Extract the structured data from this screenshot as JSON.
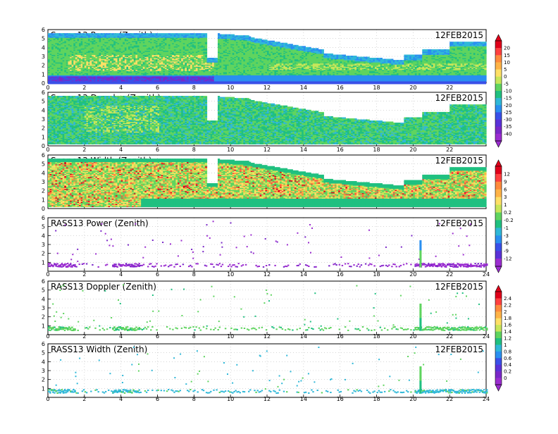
{
  "chart_data": [
    {
      "type": "heatmap",
      "title": "Spano13 Power (Zenith)",
      "date": "12FEB2015",
      "xlim": [
        0,
        24
      ],
      "ylim": [
        0,
        6
      ],
      "xticks": [
        "0",
        "2",
        "4",
        "6",
        "8",
        "10",
        "12",
        "14",
        "16",
        "18",
        "20",
        "22"
      ],
      "yticks": [
        "0",
        "1",
        "2",
        "3",
        "4",
        "5",
        "6"
      ],
      "colorbar": "power"
    },
    {
      "type": "heatmap",
      "title": "Spano13 Doppler (Zenith)",
      "date": "12FEB2015",
      "xlim": [
        0,
        24
      ],
      "ylim": [
        0,
        6
      ],
      "xticks": [
        "0",
        "2",
        "4",
        "6",
        "8",
        "10",
        "12",
        "14",
        "16",
        "18",
        "20",
        "22"
      ],
      "yticks": [
        "0",
        "1",
        "2",
        "3",
        "4",
        "5",
        "6"
      ],
      "colorbar": null
    },
    {
      "type": "heatmap",
      "title": "Spano13 Width (Zenith)",
      "date": "12FEB2015",
      "xlim": [
        0,
        24
      ],
      "ylim": [
        0,
        6
      ],
      "xticks": [],
      "yticks": [
        "0",
        "1",
        "2",
        "3",
        "4",
        "5",
        "6"
      ],
      "colorbar": "width"
    },
    {
      "type": "scatter",
      "title": "RASS13 Power (Zenith)",
      "date": "12FEB2015",
      "xlim": [
        0,
        24
      ],
      "ylim": [
        0,
        6
      ],
      "xticks": [
        "0",
        "2",
        "4",
        "6",
        "8",
        "10",
        "12",
        "14",
        "16",
        "18",
        "20",
        "22",
        "24"
      ],
      "yticks": [
        "1",
        "2",
        "3",
        "4",
        "5",
        "6"
      ],
      "colorbar": null
    },
    {
      "type": "scatter",
      "title": "RASS13 Doppler (Zenith)",
      "date": "12FEB2015",
      "xlim": [
        0,
        24
      ],
      "ylim": [
        0,
        6
      ],
      "xticks": [
        "0",
        "2",
        "4",
        "6",
        "8",
        "10",
        "12",
        "14",
        "16",
        "18",
        "20",
        "22",
        "24"
      ],
      "yticks": [
        "1",
        "2",
        "3",
        "4",
        "5",
        "6"
      ],
      "colorbar": "rass"
    },
    {
      "type": "scatter",
      "title": "RASS13 Width (Zenith)",
      "date": "12FEB2015",
      "xlim": [
        0,
        24
      ],
      "ylim": [
        0,
        6
      ],
      "xticks": [
        "0",
        "2",
        "4",
        "6",
        "8",
        "10",
        "12",
        "14",
        "16",
        "18",
        "20",
        "22",
        "24"
      ],
      "yticks": [
        "1",
        "2",
        "3",
        "4",
        "5",
        "6"
      ],
      "colorbar": null
    }
  ],
  "colorbars": {
    "power": {
      "labels": [
        "20",
        "15",
        "10",
        "5",
        "0",
        "-5",
        "-10",
        "-15",
        "-20",
        "-25",
        "-30",
        "-35",
        "-40"
      ],
      "colors": [
        "#e0001a",
        "#ff4040",
        "#ff8a3d",
        "#ffb347",
        "#ffe066",
        "#c8e65a",
        "#5fd45f",
        "#20c080",
        "#30b8d8",
        "#2a8ff0",
        "#3a50e8",
        "#5a32d8",
        "#7a28c8",
        "#9b2dd0"
      ]
    },
    "width": {
      "labels": [
        "12",
        "9",
        "6",
        "3",
        "1",
        "0.2",
        "-0.2",
        "-1",
        "-3",
        "-6",
        "-9",
        "-12"
      ],
      "colors": [
        "#e0001a",
        "#ff4040",
        "#ff8a3d",
        "#ffb347",
        "#ffe066",
        "#c8e65a",
        "#5fd45f",
        "#20c080",
        "#30b8d8",
        "#2a8ff0",
        "#3a50e8",
        "#5a32d8",
        "#9b2dd0"
      ]
    },
    "rass": {
      "labels": [
        "2.4",
        "2.2",
        "2",
        "1.8",
        "1.6",
        "1.4",
        "1.2",
        "1",
        "0.8",
        "0.6",
        "0.4",
        "0.2",
        "0"
      ],
      "colors": [
        "#e0001a",
        "#ff4040",
        "#ff8a3d",
        "#ffb347",
        "#ffe066",
        "#c8e65a",
        "#5fd45f",
        "#20c080",
        "#30b8d8",
        "#2a8ff0",
        "#3a50e8",
        "#5a32d8",
        "#7a28c8",
        "#9b2dd0"
      ]
    }
  }
}
